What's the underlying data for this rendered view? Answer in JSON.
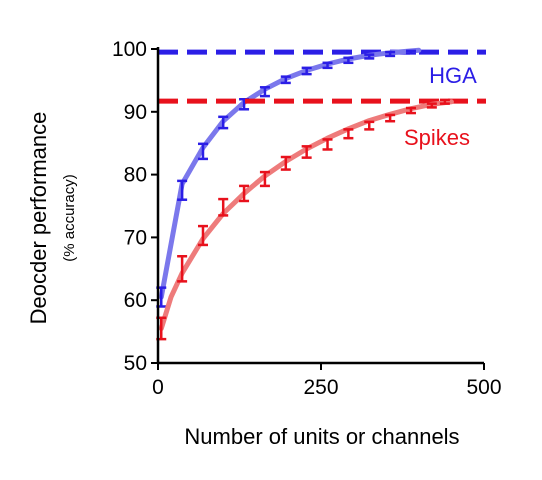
{
  "chart_data": {
    "type": "line",
    "xlabel": "Number of units or channels",
    "ylabel": "Deocder performance",
    "ylabel_sub": "(% accuracy)",
    "xlim": [
      0,
      500
    ],
    "ylim": [
      50,
      100
    ],
    "x_ticks": [
      0,
      250,
      500
    ],
    "y_ticks": [
      50,
      60,
      70,
      80,
      90,
      100
    ],
    "grid": false,
    "legend": "inline labels at right",
    "series": [
      {
        "name": "HGA",
        "color": "#2b1ee6",
        "fit_color": "#7b78ec",
        "ceiling": 99.5,
        "points": [
          {
            "x": 5,
            "y": 60.5,
            "err": 1.5
          },
          {
            "x": 37,
            "y": 77.5,
            "err": 1.5
          },
          {
            "x": 69,
            "y": 83.7,
            "err": 1.2
          },
          {
            "x": 100,
            "y": 88.3,
            "err": 0.9
          },
          {
            "x": 132,
            "y": 91.2,
            "err": 0.8
          },
          {
            "x": 164,
            "y": 93.2,
            "err": 0.7
          },
          {
            "x": 196,
            "y": 95.1,
            "err": 0.5
          },
          {
            "x": 228,
            "y": 96.5,
            "err": 0.5
          },
          {
            "x": 260,
            "y": 97.4,
            "err": 0.4
          },
          {
            "x": 292,
            "y": 98.2,
            "err": 0.4
          },
          {
            "x": 324,
            "y": 98.8,
            "err": 0.3
          },
          {
            "x": 356,
            "y": 99.2,
            "err": 0.3
          },
          {
            "x": 388,
            "y": 99.5,
            "err": 0.2
          }
        ],
        "fit": [
          {
            "x": 5,
            "y": 60.5
          },
          {
            "x": 37,
            "y": 78.5
          },
          {
            "x": 69,
            "y": 84.3
          },
          {
            "x": 100,
            "y": 88.5
          },
          {
            "x": 132,
            "y": 91.5
          },
          {
            "x": 164,
            "y": 93.6
          },
          {
            "x": 196,
            "y": 95.3
          },
          {
            "x": 228,
            "y": 96.6
          },
          {
            "x": 260,
            "y": 97.6
          },
          {
            "x": 292,
            "y": 98.4
          },
          {
            "x": 324,
            "y": 99.0
          },
          {
            "x": 356,
            "y": 99.4
          },
          {
            "x": 400,
            "y": 99.8
          }
        ]
      },
      {
        "name": "Spikes",
        "color": "#e8111c",
        "fit_color": "#ee7b7b",
        "ceiling": 91.7,
        "points": [
          {
            "x": 5,
            "y": 55.5,
            "err": 1.7
          },
          {
            "x": 37,
            "y": 65.0,
            "err": 2.0
          },
          {
            "x": 69,
            "y": 70.3,
            "err": 1.5
          },
          {
            "x": 100,
            "y": 74.8,
            "err": 1.3
          },
          {
            "x": 132,
            "y": 77.0,
            "err": 1.2
          },
          {
            "x": 164,
            "y": 79.3,
            "err": 1.1
          },
          {
            "x": 196,
            "y": 81.8,
            "err": 1.0
          },
          {
            "x": 228,
            "y": 83.6,
            "err": 0.9
          },
          {
            "x": 260,
            "y": 84.8,
            "err": 0.8
          },
          {
            "x": 292,
            "y": 86.5,
            "err": 0.7
          },
          {
            "x": 324,
            "y": 87.8,
            "err": 0.6
          },
          {
            "x": 356,
            "y": 89.0,
            "err": 0.5
          },
          {
            "x": 388,
            "y": 90.2,
            "err": 0.4
          },
          {
            "x": 420,
            "y": 91.0,
            "err": 0.3
          },
          {
            "x": 440,
            "y": 91.6,
            "err": 0.3
          }
        ],
        "fit": [
          {
            "x": 5,
            "y": 55.5
          },
          {
            "x": 20,
            "y": 60.5
          },
          {
            "x": 37,
            "y": 64.3
          },
          {
            "x": 69,
            "y": 69.8
          },
          {
            "x": 100,
            "y": 73.8
          },
          {
            "x": 132,
            "y": 77.0
          },
          {
            "x": 164,
            "y": 79.8
          },
          {
            "x": 196,
            "y": 82.1
          },
          {
            "x": 228,
            "y": 84.1
          },
          {
            "x": 260,
            "y": 85.8
          },
          {
            "x": 292,
            "y": 87.3
          },
          {
            "x": 324,
            "y": 88.6
          },
          {
            "x": 356,
            "y": 89.6
          },
          {
            "x": 388,
            "y": 90.5
          },
          {
            "x": 420,
            "y": 91.2
          },
          {
            "x": 450,
            "y": 91.6
          }
        ]
      }
    ]
  }
}
